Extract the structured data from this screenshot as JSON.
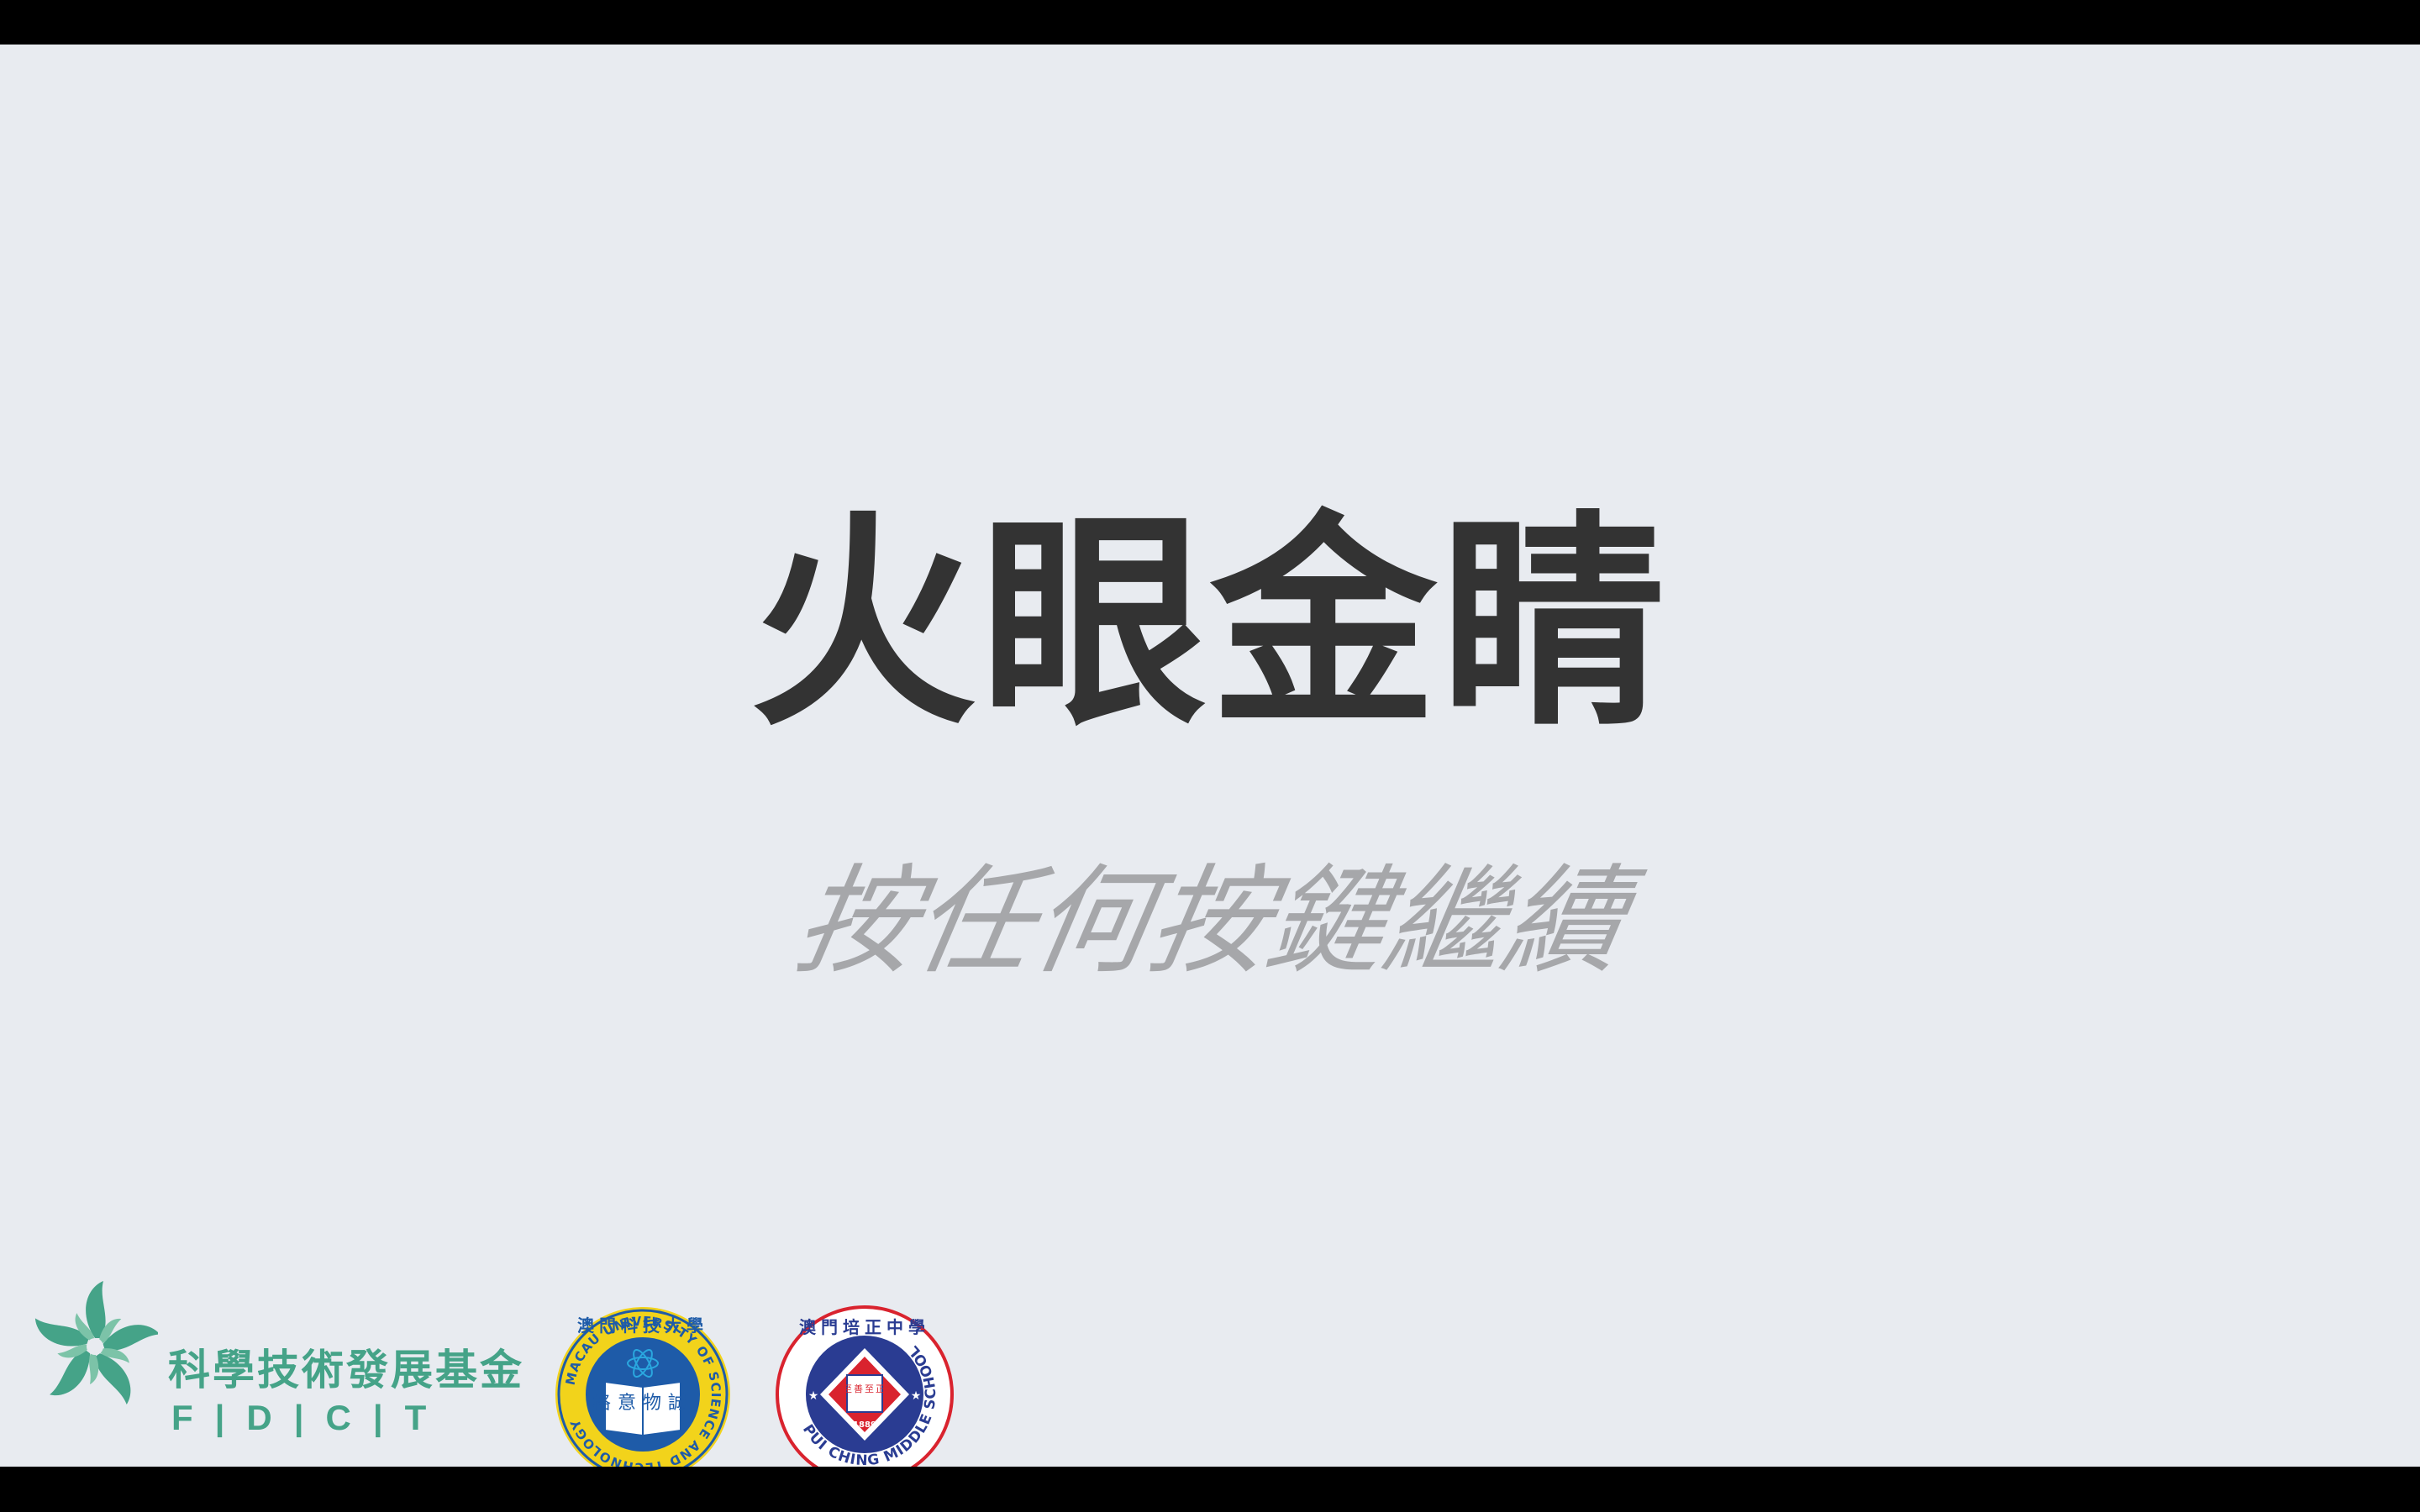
{
  "screen": {
    "title": "火眼金睛",
    "prompt": "按任何按鍵繼續"
  },
  "logos": {
    "fdct": {
      "chinese_name": "科學技術發展基金",
      "english_abbr": "F|D|C|T"
    },
    "must": {
      "chinese_name": "澳門科技大學",
      "english_name": "MACAU UNIVERSITY OF SCIENCE AND TECHNOLOGY",
      "motto": "格意物誠"
    },
    "pui_ching": {
      "chinese_name": "澳門培正中學",
      "english_name": "PUI CHING MIDDLE SCHOOL",
      "motto": "至善至正",
      "year": "1889"
    }
  },
  "colors": {
    "background": "#e8ebf0",
    "title": "#333333",
    "prompt": "#a6a7aa",
    "fdct_green": "#45a388",
    "must_blue": "#1e5ba8",
    "must_yellow": "#f2d31b",
    "pui_ching_red": "#d9232e",
    "pui_ching_blue": "#2a3c92"
  }
}
